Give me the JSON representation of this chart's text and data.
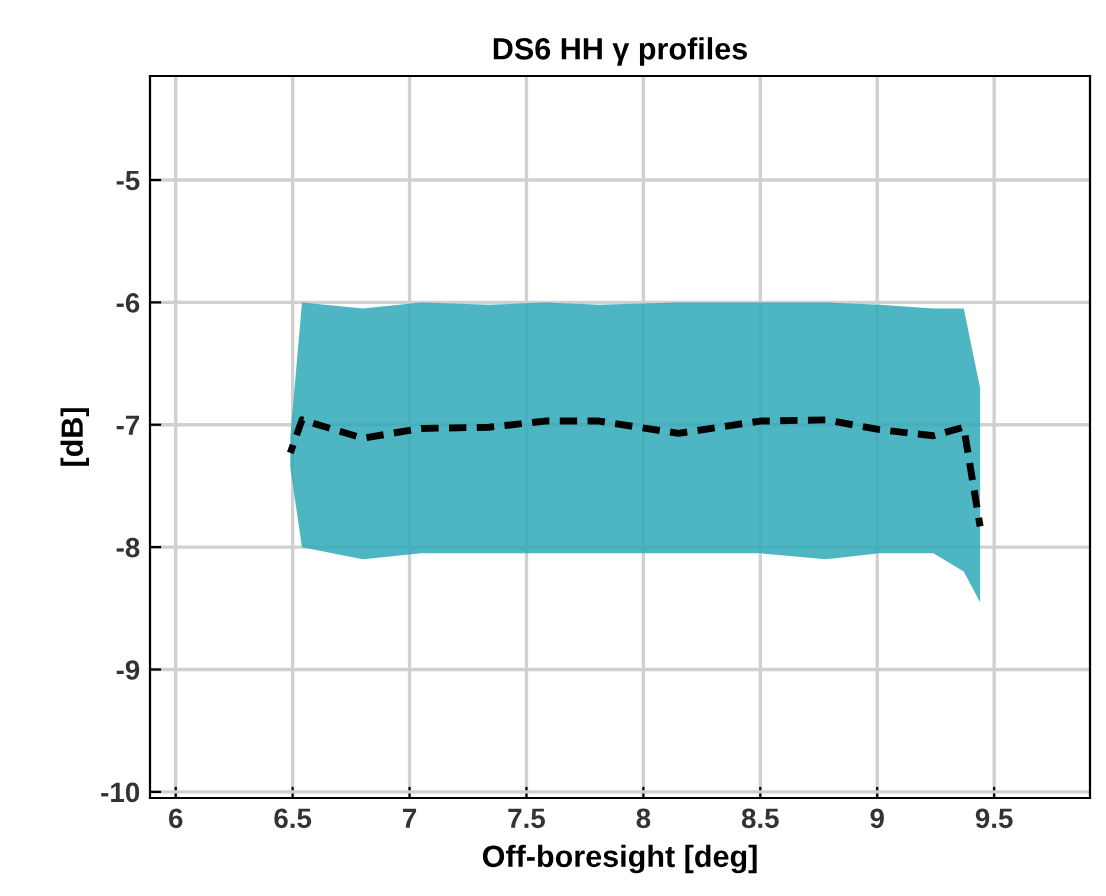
{
  "chart_data": {
    "type": "line",
    "title": "DS6 HH γ profiles",
    "xlabel": "Off-boresight [deg]",
    "ylabel": "[dB]",
    "xlim": [
      5.89,
      9.91
    ],
    "ylim": [
      -10.05,
      -4.15
    ],
    "xticks": [
      6,
      6.5,
      7,
      7.5,
      8,
      8.5,
      9,
      9.5
    ],
    "yticks": [
      -10,
      -9,
      -8,
      -7,
      -6,
      -5
    ],
    "grid": true,
    "legend": false,
    "marker": "none",
    "line_style": "dashed",
    "series": [
      {
        "color": "#000000",
        "x": [
          6.49,
          6.54,
          6.8,
          7.05,
          7.34,
          7.58,
          7.81,
          8.15,
          8.5,
          8.78,
          9.01,
          9.24,
          9.37,
          9.44
        ],
        "values": [
          -7.23,
          -6.96,
          -7.11,
          -7.03,
          -7.02,
          -6.97,
          -6.97,
          -7.07,
          -6.97,
          -6.96,
          -7.04,
          -7.09,
          -7.02,
          -7.83
        ],
        "lower": [
          -7.35,
          -8.0,
          -8.1,
          -8.05,
          -8.05,
          -8.05,
          -8.05,
          -8.05,
          -8.05,
          -8.1,
          -8.05,
          -8.05,
          -8.2,
          -8.45
        ],
        "upper": [
          -7.1,
          -6.0,
          -6.05,
          -6.0,
          -6.02,
          -6.0,
          -6.02,
          -6.0,
          -6.0,
          -6.0,
          -6.02,
          -6.05,
          -6.05,
          -6.7
        ]
      }
    ]
  }
}
